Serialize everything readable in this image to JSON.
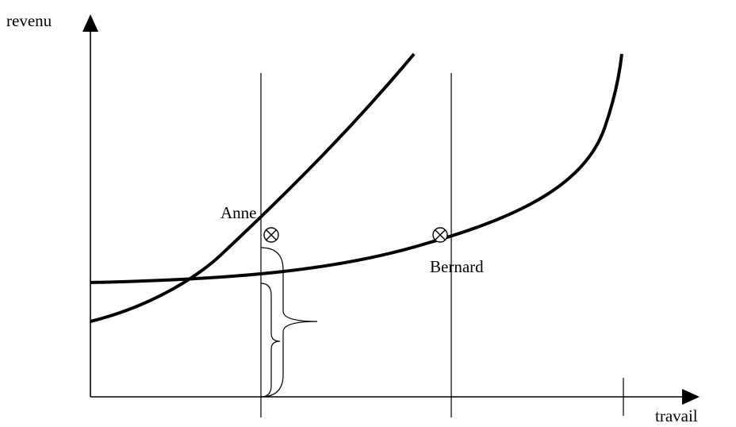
{
  "labels": {
    "y_axis": "revenu",
    "x_axis": "travail",
    "point_anne": "Anne",
    "point_bernard": "Bernard"
  },
  "colors": {
    "ink": "#000000",
    "background": "#ffffff"
  }
}
